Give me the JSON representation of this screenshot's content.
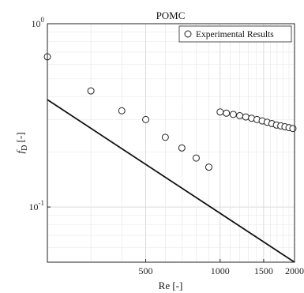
{
  "chart_data": {
    "type": "scatter",
    "title": "POMC",
    "xlabel": "Re [-]",
    "ylabel_main": "f",
    "ylabel_sub": "D",
    "ylabel_unit": " [-]",
    "x_scale": "log",
    "y_scale": "log",
    "xlim": [
      200,
      2000
    ],
    "ylim": [
      0.05,
      1.0
    ],
    "grid": true,
    "legend_position": "top-right",
    "x_ticks": [
      {
        "value": 500,
        "label": "500"
      },
      {
        "value": 1000,
        "label": "1000"
      },
      {
        "value": 1500,
        "label": "1500"
      },
      {
        "value": 2000,
        "label": "2000"
      }
    ],
    "y_ticks": [
      {
        "value": 0.1,
        "base": "10",
        "exp": "-1"
      },
      {
        "value": 1.0,
        "base": "10",
        "exp": "0"
      }
    ],
    "series": [
      {
        "name": "Experimental Results",
        "marker": "open-circle",
        "x": [
          200,
          300,
          400,
          500,
          600,
          700,
          800,
          900,
          1000,
          1060,
          1130,
          1200,
          1270,
          1340,
          1410,
          1480,
          1550,
          1620,
          1690,
          1760,
          1830,
          1900,
          1970
        ],
        "y": [
          0.66,
          0.43,
          0.335,
          0.3,
          0.24,
          0.21,
          0.185,
          0.165,
          0.33,
          0.325,
          0.32,
          0.315,
          0.31,
          0.305,
          0.3,
          0.295,
          0.29,
          0.285,
          0.28,
          0.277,
          0.274,
          0.271,
          0.268
        ]
      },
      {
        "marker": "line",
        "x": [
          200,
          2000
        ],
        "y": [
          0.385,
          0.05
        ]
      }
    ]
  }
}
